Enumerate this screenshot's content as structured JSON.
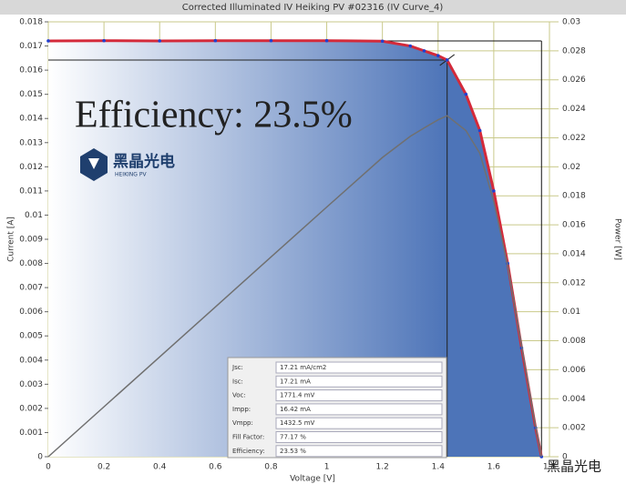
{
  "chart_data": {
    "type": "line",
    "title": "Corrected Illuminated IV Heiking PV #02316 (IV Curve_4)",
    "x_label": "Voltage [V]",
    "y_label": "Current [A]",
    "y2_label": "Power [W]",
    "annotation": "Efficiency: 23.5%",
    "x": [
      0,
      0.2,
      0.4,
      0.6,
      0.8,
      1.0,
      1.2,
      1.3,
      1.35,
      1.4,
      1.4325,
      1.5,
      1.55,
      1.6,
      1.65,
      1.7,
      1.75,
      1.7714
    ],
    "series": [
      {
        "name": "Current",
        "color": "#d42a3a",
        "values": [
          0.01721,
          0.01722,
          0.01721,
          0.01722,
          0.01722,
          0.01722,
          0.0172,
          0.017,
          0.0168,
          0.0166,
          0.01642,
          0.015,
          0.0135,
          0.011,
          0.008,
          0.0045,
          0.0012,
          0
        ]
      },
      {
        "name": "Power",
        "color": "#707070",
        "axis": "y2",
        "values": [
          0,
          0.003444,
          0.006884,
          0.01033,
          0.01378,
          0.01722,
          0.02064,
          0.0221,
          0.02268,
          0.02324,
          0.02352,
          0.0225,
          0.02093,
          0.0176,
          0.0132,
          0.00765,
          0.0021,
          0
        ]
      }
    ],
    "xlim": [
      0,
      1.8
    ],
    "xticks": [
      0,
      0.2,
      0.4,
      0.6,
      0.8,
      1.0,
      1.2,
      1.4,
      1.6,
      1.8
    ],
    "ylim": [
      0,
      0.018
    ],
    "yticks": [
      0,
      0.001,
      0.002,
      0.003,
      0.004,
      0.005,
      0.006,
      0.007,
      0.008,
      0.009,
      0.01,
      0.011,
      0.012,
      0.013,
      0.014,
      0.015,
      0.016,
      0.017,
      0.018
    ],
    "y2lim": [
      0,
      0.03
    ],
    "y2ticks": [
      0,
      0.002,
      0.004,
      0.006,
      0.008,
      0.01,
      0.012,
      0.014,
      0.016,
      0.018,
      0.02,
      0.022,
      0.024,
      0.026,
      0.028,
      0.03
    ],
    "grid": true,
    "mpp": {
      "x": 1.4325,
      "y": 0.01642
    },
    "voc_jsc": {
      "x": 1.7714,
      "y": 0.01721
    }
  },
  "logo": {
    "name": "黑晶光电",
    "sub": "HEIKING PV"
  },
  "table": {
    "rows": [
      [
        "Jsc:",
        "17.21 mA/cm2"
      ],
      [
        "Isc:",
        "17.21 mA"
      ],
      [
        "Voc:",
        "1771.4 mV"
      ],
      [
        "Impp:",
        "16.42 mA"
      ],
      [
        "Vmpp:",
        "1432.5 mV"
      ],
      [
        "Fill Factor:",
        "77.17 %"
      ],
      [
        "Efficiency:",
        "23.53 %"
      ]
    ]
  },
  "watermark": "黑晶光电"
}
